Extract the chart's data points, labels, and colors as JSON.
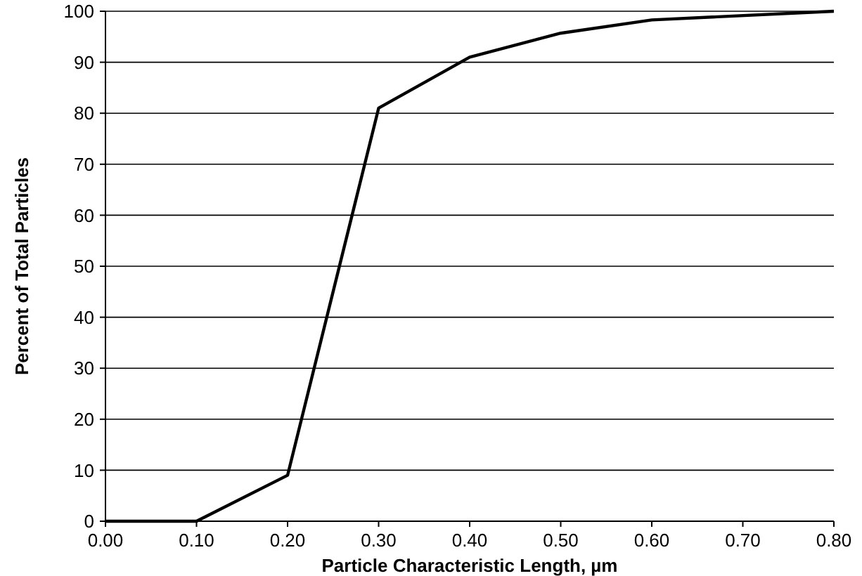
{
  "chart_data": {
    "type": "line",
    "xlabel": "Particle Characteristic Length, µm",
    "ylabel": "Percent of Total Particles",
    "x": [
      0,
      0.1,
      0.2,
      0.3,
      0.4,
      0.5,
      0.6,
      0.8
    ],
    "series": [
      {
        "color": "#000000",
        "values": [
          0,
          0,
          9,
          81,
          91,
          95.7,
          98.3,
          100
        ]
      }
    ],
    "xlim": [
      0,
      0.8
    ],
    "ylim": [
      0,
      100
    ],
    "xticks": [
      {
        "value": 0,
        "label": "0.00"
      },
      {
        "value": 0.1,
        "label": "0.10"
      },
      {
        "value": 0.2,
        "label": "0.20"
      },
      {
        "value": 0.3,
        "label": "0.30"
      },
      {
        "value": 0.4,
        "label": "0.40"
      },
      {
        "value": 0.5,
        "label": "0.50"
      },
      {
        "value": 0.6,
        "label": "0.60"
      },
      {
        "value": 0.7,
        "label": "0.70"
      },
      {
        "value": 0.8,
        "label": "0.80"
      }
    ],
    "yticks": [
      0,
      10,
      20,
      30,
      40,
      50,
      60,
      70,
      80,
      90,
      100
    ],
    "grid": "y",
    "marker": "none",
    "line_style": "solid"
  }
}
